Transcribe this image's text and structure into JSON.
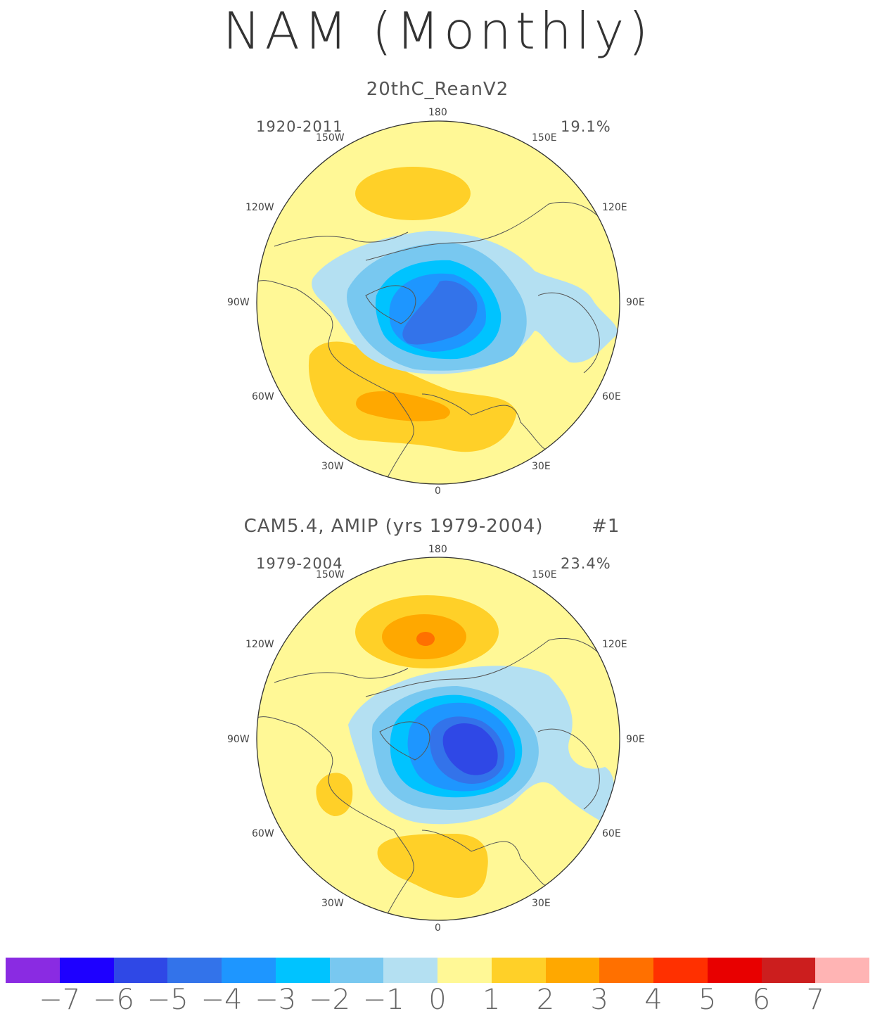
{
  "title": "NAM (Monthly)",
  "chart_data": [
    {
      "type": "heatmap",
      "projection": "north-polar-stereographic",
      "title": "20thC_ReanV2",
      "period": "1920-2011",
      "variance_explained": "19.1%",
      "lon_labels": [
        "180",
        "150W",
        "150E",
        "120W",
        "120E",
        "90W",
        "90E",
        "60W",
        "60E",
        "30W",
        "30E",
        "0"
      ]
    },
    {
      "type": "heatmap",
      "projection": "north-polar-stereographic",
      "title": "CAM5.4, AMIP (yrs 1979-2004)",
      "run_label": "#1",
      "period": "1979-2004",
      "variance_explained": "23.4%",
      "lon_labels": [
        "180",
        "150W",
        "150E",
        "120W",
        "120E",
        "90W",
        "90E",
        "60W",
        "60E",
        "30W",
        "30E",
        "0"
      ]
    }
  ],
  "colorbar": {
    "levels": [
      "-7",
      "-6",
      "-5",
      "-4",
      "-3",
      "-2",
      "-1",
      "0",
      "1",
      "2",
      "3",
      "4",
      "5",
      "6",
      "7"
    ],
    "colors": [
      "#8a2be2",
      "#1e00ff",
      "#2f48e6",
      "#3373ea",
      "#1e96ff",
      "#00c3ff",
      "#78c8f0",
      "#b4e0f2",
      "#fff896",
      "#ffd028",
      "#ffa800",
      "#ff7000",
      "#ff3000",
      "#e80000",
      "#cc1e1e",
      "#ffb4b4"
    ]
  }
}
